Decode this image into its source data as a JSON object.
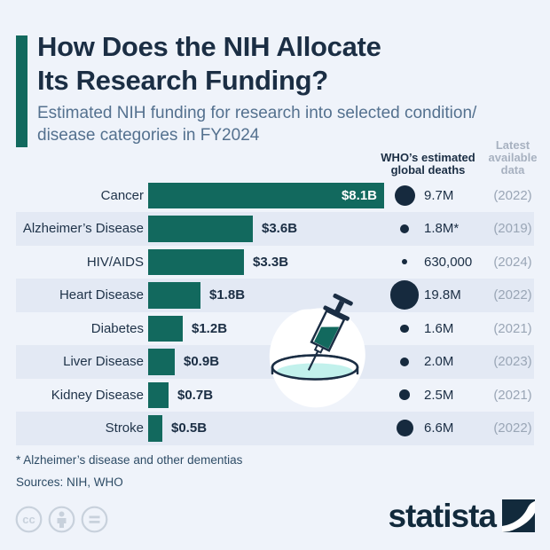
{
  "page": {
    "title_line1": "How Does the NIH Allocate",
    "title_line2": "Its Research Funding?",
    "subtitle_line1": "Estimated NIH funding for research into selected condition/",
    "subtitle_line2": "disease categories in FY2024"
  },
  "column_headers": {
    "deaths_line1": "WHO’s estimated",
    "deaths_line2": "global deaths",
    "latest_line1": "Latest",
    "latest_line2": "available",
    "latest_line3": "data"
  },
  "chart_data": {
    "type": "bar",
    "orientation": "horizontal",
    "title": "How Does the NIH Allocate Its Research Funding?",
    "subtitle": "Estimated NIH funding for research into selected condition/disease categories in FY2024",
    "categories": [
      "Cancer",
      "Alzheimer’s Disease",
      "HIV/AIDS",
      "Heart Disease",
      "Diabetes",
      "Liver Disease",
      "Kidney Disease",
      "Stroke"
    ],
    "series": [
      {
        "name": "Estimated NIH research funding FY2024",
        "unit": "billion USD",
        "values": [
          8.1,
          3.6,
          3.3,
          1.8,
          1.2,
          0.9,
          0.7,
          0.5
        ],
        "labels": [
          "$8.1B",
          "$3.6B",
          "$3.3B",
          "$1.8B",
          "$1.2B",
          "$0.9B",
          "$0.7B",
          "$0.5B"
        ]
      },
      {
        "name": "WHO’s estimated global deaths",
        "unit": "millions of deaths",
        "encoding": "circle-area",
        "values": [
          9.7,
          1.8,
          0.63,
          19.8,
          1.6,
          2.0,
          2.5,
          6.6
        ],
        "labels": [
          "9.7M",
          "1.8M*",
          "630,000",
          "19.8M",
          "1.6M",
          "2.0M",
          "2.5M",
          "6.6M"
        ]
      }
    ],
    "latest_data_years": [
      "(2022)",
      "(2019)",
      "(2024)",
      "(2022)",
      "(2021)",
      "(2023)",
      "(2021)",
      "(2022)"
    ],
    "xlim": [
      0,
      8.1
    ],
    "grid": false,
    "legend": false
  },
  "rows": [
    {
      "label": "Cancer",
      "funding_b": 8.1,
      "funding_label": "$8.1B",
      "deaths_m": 9.7,
      "deaths_label": "9.7M",
      "year": "(2022)",
      "value_inside": true,
      "shaded": false
    },
    {
      "label": "Alzheimer’s Disease",
      "funding_b": 3.6,
      "funding_label": "$3.6B",
      "deaths_m": 1.8,
      "deaths_label": "1.8M*",
      "year": "(2019)",
      "value_inside": false,
      "shaded": true
    },
    {
      "label": "HIV/AIDS",
      "funding_b": 3.3,
      "funding_label": "$3.3B",
      "deaths_m": 0.63,
      "deaths_label": "630,000",
      "year": "(2024)",
      "value_inside": false,
      "shaded": false
    },
    {
      "label": "Heart Disease",
      "funding_b": 1.8,
      "funding_label": "$1.8B",
      "deaths_m": 19.8,
      "deaths_label": "19.8M",
      "year": "(2022)",
      "value_inside": false,
      "shaded": true
    },
    {
      "label": "Diabetes",
      "funding_b": 1.2,
      "funding_label": "$1.2B",
      "deaths_m": 1.6,
      "deaths_label": "1.6M",
      "year": "(2021)",
      "value_inside": false,
      "shaded": false
    },
    {
      "label": "Liver Disease",
      "funding_b": 0.9,
      "funding_label": "$0.9B",
      "deaths_m": 2.0,
      "deaths_label": "2.0M",
      "year": "(2023)",
      "value_inside": false,
      "shaded": true
    },
    {
      "label": "Kidney Disease",
      "funding_b": 0.7,
      "funding_label": "$0.7B",
      "deaths_m": 2.5,
      "deaths_label": "2.5M",
      "year": "(2021)",
      "value_inside": false,
      "shaded": false
    },
    {
      "label": "Stroke",
      "funding_b": 0.5,
      "funding_label": "$0.5B",
      "deaths_m": 6.6,
      "deaths_label": "6.6M",
      "year": "(2022)",
      "value_inside": false,
      "shaded": true
    }
  ],
  "footer": {
    "footnote": "* Alzheimer’s disease and other dementias",
    "sources": "Sources: NIH, WHO"
  },
  "branding": {
    "logo_text": "statista",
    "license_icons": [
      "creative-commons",
      "attribution",
      "no-derivatives"
    ]
  },
  "illustration": "syringe-dripping-into-petri-dish",
  "colors": {
    "background": "#eff3fa",
    "row_band": "#e3e9f4",
    "bar_teal": "#12695e",
    "title_navy": "#1b2e44",
    "subtitle_blue_gray": "#54718f",
    "dot_navy": "#162a3e",
    "year_gray": "#9aa6b6",
    "illustration_cyan": "#c2f1ec"
  }
}
